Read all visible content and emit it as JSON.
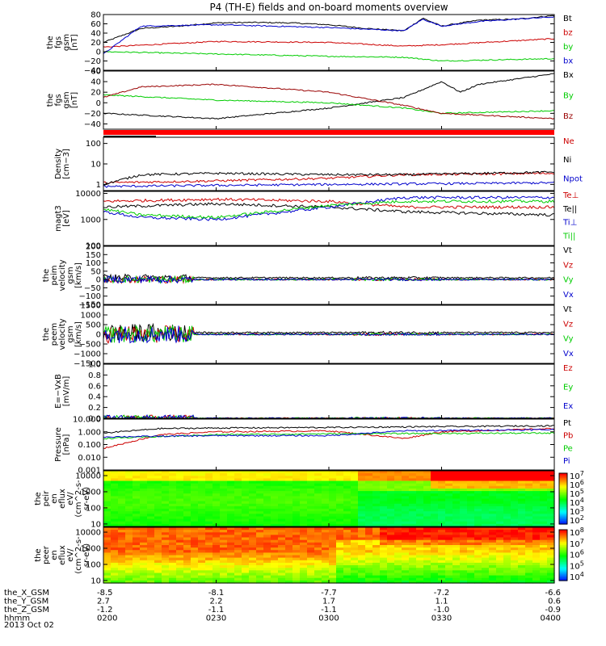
{
  "title": "P4 (TH-E) fields and on-board moments overview",
  "time_axis": {
    "rows": [
      {
        "name": "the_X_GSM",
        "values": [
          "-8.5",
          "-8.1",
          "-7.7",
          "-7.2",
          "-6.6"
        ]
      },
      {
        "name": "the_Y_GSM",
        "values": [
          "2.7",
          "2.2",
          "1.7",
          "1.1",
          "0.6"
        ]
      },
      {
        "name": "the_Z_GSM",
        "values": [
          "-1.2",
          "-1.1",
          "-1.1",
          "-1.0",
          "-0.9"
        ]
      },
      {
        "name": "hhmm",
        "values": [
          "0200",
          "0230",
          "0300",
          "0330",
          "0400"
        ]
      }
    ],
    "date": "2013 Oct 02"
  },
  "chart_data": [
    {
      "type": "line",
      "ylabel": [
        "the",
        "fgs",
        "gsm",
        "[nT]"
      ],
      "ylim": [
        -40,
        80
      ],
      "yticks": [
        "80",
        "60",
        "40",
        "20",
        "0",
        "−20",
        "−40"
      ],
      "series": [
        {
          "name": "Bt",
          "color": "#000000",
          "x": [
            "0200",
            "0210",
            "0220",
            "0230",
            "0240",
            "0250",
            "0300",
            "0310",
            "0320",
            "0325",
            "0330",
            "0340",
            "0350",
            "0400"
          ],
          "values": [
            20,
            50,
            55,
            62,
            63,
            62,
            58,
            50,
            45,
            72,
            55,
            68,
            70,
            78
          ]
        },
        {
          "name": "bz",
          "color": "#cc0000",
          "x": [
            "0200",
            "0230",
            "0300",
            "0320",
            "0330",
            "0400"
          ],
          "values": [
            10,
            22,
            20,
            12,
            15,
            28
          ]
        },
        {
          "name": "by",
          "color": "#00cc00",
          "x": [
            "0200",
            "0230",
            "0300",
            "0320",
            "0330",
            "0400"
          ],
          "values": [
            0,
            -5,
            -10,
            -12,
            -20,
            -15
          ]
        },
        {
          "name": "bx",
          "color": "#0000cc",
          "x": [
            "0200",
            "0210",
            "0230",
            "0300",
            "0320",
            "0325",
            "0330",
            "0340",
            "0400"
          ],
          "values": [
            -5,
            55,
            58,
            52,
            45,
            70,
            55,
            65,
            75
          ]
        }
      ]
    },
    {
      "type": "line",
      "ylabel": [
        "the",
        "fgs",
        "gsm",
        "[nT]"
      ],
      "ylim": [
        -50,
        60
      ],
      "yticks": [
        "60",
        "40",
        "20",
        "0",
        "−20",
        "−40"
      ],
      "series": [
        {
          "name": "Bx",
          "color": "#000000",
          "x": [
            "0200",
            "0230",
            "0300",
            "0320",
            "0330",
            "0335",
            "0340",
            "0400"
          ],
          "values": [
            -20,
            -30,
            -10,
            10,
            40,
            20,
            35,
            55
          ]
        },
        {
          "name": "By",
          "color": "#00cc00",
          "x": [
            "0200",
            "0230",
            "0300",
            "0320",
            "0330",
            "0400"
          ],
          "values": [
            15,
            5,
            0,
            -10,
            -20,
            -15
          ]
        },
        {
          "name": "Bz",
          "color": "#990000",
          "x": [
            "0200",
            "0210",
            "0230",
            "0300",
            "0320",
            "0330",
            "0400"
          ],
          "values": [
            10,
            30,
            35,
            20,
            -5,
            -20,
            -30
          ]
        }
      ]
    },
    {
      "type": "line",
      "ylabel": [
        "Density",
        "[cm−3]"
      ],
      "ylim": [
        0.5,
        200
      ],
      "log": true,
      "yticks": [
        "100",
        "10",
        "1"
      ],
      "series": [
        {
          "name": "Ne",
          "color": "#cc0000",
          "x": [
            "0200",
            "0230",
            "0300",
            "0320",
            "0400"
          ],
          "values": [
            1.2,
            1.5,
            2.0,
            3.0,
            3.5
          ]
        },
        {
          "name": "Ni",
          "color": "#000000",
          "x": [
            "0200",
            "0210",
            "0230",
            "0300",
            "0320",
            "0400"
          ],
          "values": [
            1,
            3,
            3.5,
            3,
            3,
            4
          ]
        },
        {
          "name": "Npot",
          "color": "#0000cc",
          "x": [
            "0200",
            "0230",
            "0300",
            "0400"
          ],
          "values": [
            0.8,
            0.9,
            1.0,
            1.2
          ]
        }
      ]
    },
    {
      "type": "line",
      "ylabel": [
        "magt3",
        "[eV]"
      ],
      "ylim": [
        100,
        12000
      ],
      "log": true,
      "yticks": [
        "10000",
        "1000",
        "100"
      ],
      "series": [
        {
          "name": "Te⊥",
          "color": "#cc0000",
          "x": [
            "0200",
            "0230",
            "0300",
            "0320",
            "0400"
          ],
          "values": [
            5000,
            6000,
            5000,
            3000,
            3000
          ]
        },
        {
          "name": "Te||",
          "color": "#000000",
          "x": [
            "0200",
            "0230",
            "0300",
            "0320",
            "0400"
          ],
          "values": [
            3000,
            4000,
            3000,
            2000,
            1500
          ]
        },
        {
          "name": "Ti⊥",
          "color": "#0000cc",
          "x": [
            "0200",
            "0210",
            "0230",
            "0300",
            "0320",
            "0400"
          ],
          "values": [
            2000,
            1200,
            1000,
            3000,
            7000,
            7000
          ]
        },
        {
          "name": "Ti||",
          "color": "#00cc00",
          "x": [
            "0200",
            "0210",
            "0230",
            "0300",
            "0320",
            "0400"
          ],
          "values": [
            2500,
            1500,
            1200,
            3500,
            5000,
            5000
          ]
        }
      ]
    },
    {
      "type": "line",
      "ylabel": [
        "the",
        "peim",
        "velocity",
        "gsm",
        "[km/s]"
      ],
      "ylim": [
        -150,
        200
      ],
      "yticks": [
        "200",
        "150",
        "100",
        "50",
        "0",
        "−50",
        "−100",
        "−150"
      ],
      "series": [
        {
          "name": "Vt",
          "color": "#000000"
        },
        {
          "name": "Vz",
          "color": "#cc0000"
        },
        {
          "name": "Vy",
          "color": "#00cc00"
        },
        {
          "name": "Vx",
          "color": "#0000cc"
        }
      ]
    },
    {
      "type": "line",
      "ylabel": [
        "the",
        "peem",
        "velocity",
        "gsm",
        "[km/s]"
      ],
      "ylim": [
        -1500,
        1500
      ],
      "yticks": [
        "1500",
        "1000",
        "500",
        "0",
        "−500",
        "−1000",
        "−1500"
      ],
      "series": [
        {
          "name": "Vt",
          "color": "#000000"
        },
        {
          "name": "Vz",
          "color": "#cc0000"
        },
        {
          "name": "Vy",
          "color": "#00cc00"
        },
        {
          "name": "Vx",
          "color": "#0000cc"
        }
      ]
    },
    {
      "type": "line",
      "ylabel": [
        "E=−VxB",
        "[mV/m]"
      ],
      "ylim": [
        0,
        1
      ],
      "yticks": [
        "1.0",
        "0.8",
        "0.6",
        "0.4",
        "0.2",
        "0.0"
      ],
      "series": [
        {
          "name": "Ez",
          "color": "#cc0000"
        },
        {
          "name": "Ey",
          "color": "#00cc00"
        },
        {
          "name": "Ex",
          "color": "#0000cc"
        }
      ]
    },
    {
      "type": "line",
      "ylabel": [
        "Pressure",
        "[nPa]"
      ],
      "ylim": [
        0.001,
        10
      ],
      "log": true,
      "yticks": [
        "10.000",
        "1.000",
        "0.100",
        "0.010",
        "0.001"
      ],
      "series": [
        {
          "name": "Pt",
          "color": "#000000",
          "x": [
            "0200",
            "0215",
            "0230",
            "0300",
            "0400"
          ],
          "values": [
            0.8,
            1.8,
            2.0,
            2.2,
            3.0
          ]
        },
        {
          "name": "Pb",
          "color": "#cc0000",
          "x": [
            "0200",
            "0215",
            "0230",
            "0300",
            "0320",
            "0330",
            "0400"
          ],
          "values": [
            0.05,
            0.6,
            1.0,
            1.2,
            0.3,
            1.0,
            1.8
          ]
        },
        {
          "name": "Pe",
          "color": "#00cc00",
          "x": [
            "0200",
            "0230",
            "0300",
            "0400"
          ],
          "values": [
            0.3,
            0.6,
            0.7,
            0.8
          ]
        },
        {
          "name": "Pi",
          "color": "#0000cc",
          "x": [
            "0200",
            "0230",
            "0300",
            "0320",
            "0400"
          ],
          "values": [
            0.4,
            0.5,
            0.5,
            1.2,
            1.5
          ]
        }
      ]
    },
    {
      "type": "heatmap",
      "ylabel": [
        "the",
        "peir",
        "en",
        "eflux",
        "eV/",
        "(cm^2-s-",
        "sr-eV)"
      ],
      "ylim": [
        7,
        20000
      ],
      "log": true,
      "yticks": [
        "10000",
        "1000",
        "100",
        "10"
      ],
      "colorbar": {
        "ticks": [
          "10^7",
          "10^6",
          "10^5",
          "10^4",
          "10^3",
          "10^2"
        ]
      }
    },
    {
      "type": "heatmap",
      "ylabel": [
        "the",
        "peer",
        "en",
        "eflux",
        "eV/",
        "(cm^2-s-",
        "sr-eV)"
      ],
      "ylim": [
        7,
        20000
      ],
      "log": true,
      "yticks": [
        "10000",
        "1000",
        "100",
        "10"
      ],
      "colorbar": {
        "ticks": [
          "10^8",
          "10^7",
          "10^6",
          "10^5",
          "10^4"
        ]
      }
    }
  ]
}
